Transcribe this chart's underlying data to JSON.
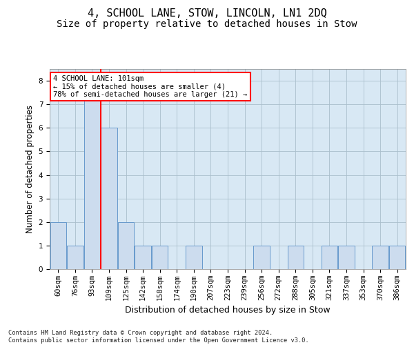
{
  "title1": "4, SCHOOL LANE, STOW, LINCOLN, LN1 2DQ",
  "title2": "Size of property relative to detached houses in Stow",
  "xlabel": "Distribution of detached houses by size in Stow",
  "ylabel": "Number of detached properties",
  "footnote": "Contains HM Land Registry data © Crown copyright and database right 2024.\nContains public sector information licensed under the Open Government Licence v3.0.",
  "categories": [
    "60sqm",
    "76sqm",
    "93sqm",
    "109sqm",
    "125sqm",
    "142sqm",
    "158sqm",
    "174sqm",
    "190sqm",
    "207sqm",
    "223sqm",
    "239sqm",
    "256sqm",
    "272sqm",
    "288sqm",
    "305sqm",
    "321sqm",
    "337sqm",
    "353sqm",
    "370sqm",
    "386sqm"
  ],
  "values": [
    2,
    1,
    8,
    6,
    2,
    1,
    1,
    0,
    1,
    0,
    0,
    0,
    1,
    0,
    1,
    0,
    1,
    1,
    0,
    1,
    1
  ],
  "bar_color": "#ccdcee",
  "bar_edge_color": "#6699cc",
  "bar_edge_width": 0.7,
  "red_line_x": 2.52,
  "annotation_text": "4 SCHOOL LANE: 101sqm\n← 15% of detached houses are smaller (4)\n78% of semi-detached houses are larger (21) →",
  "annotation_box_color": "white",
  "annotation_box_edge": "red",
  "ylim": [
    0,
    8.5
  ],
  "yticks": [
    0,
    1,
    2,
    3,
    4,
    5,
    6,
    7,
    8
  ],
  "grid_color": "#aabfcc",
  "bg_color": "#d8e8f4",
  "title1_fontsize": 11,
  "title2_fontsize": 10,
  "xlabel_fontsize": 9,
  "ylabel_fontsize": 8.5,
  "tick_fontsize": 7.5,
  "annot_fontsize": 7.5
}
